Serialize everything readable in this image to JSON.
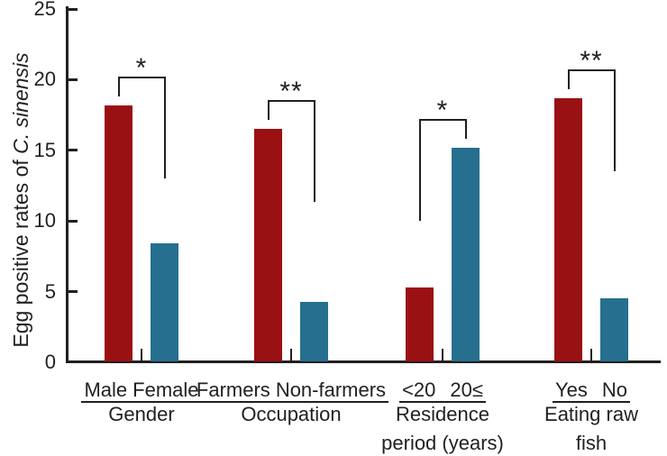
{
  "figure": {
    "background": "#ffffff",
    "text_color": "#231f20",
    "axis_color": "#231f20",
    "bar_color_first": "#9a1114",
    "bar_color_second": "#266f8e"
  },
  "chart_data": {
    "type": "bar",
    "title": "",
    "ylabel_regular": "Egg positive rates of ",
    "ylabel_italic": "C. sinensis",
    "ylim": [
      0,
      25
    ],
    "yticks": [
      0,
      5,
      10,
      15,
      20,
      25
    ],
    "grid": false,
    "legend": false,
    "groups": [
      {
        "label_lines": [
          "Gender"
        ],
        "categories": [
          "Male",
          "Female"
        ],
        "values": [
          18.2,
          8.4
        ],
        "significance": "*"
      },
      {
        "label_lines": [
          "Occupation"
        ],
        "categories": [
          "Farmers",
          "Non-farmers"
        ],
        "values": [
          16.5,
          4.3
        ],
        "significance": "**"
      },
      {
        "label_lines": [
          "Residence",
          "period (years)"
        ],
        "categories": [
          "<20",
          "20≤"
        ],
        "values": [
          5.3,
          15.2
        ],
        "significance": "*"
      },
      {
        "label_lines": [
          "Eating raw",
          "fish"
        ],
        "categories": [
          "Yes",
          "No"
        ],
        "values": [
          18.7,
          4.5
        ],
        "significance": "**"
      }
    ]
  }
}
